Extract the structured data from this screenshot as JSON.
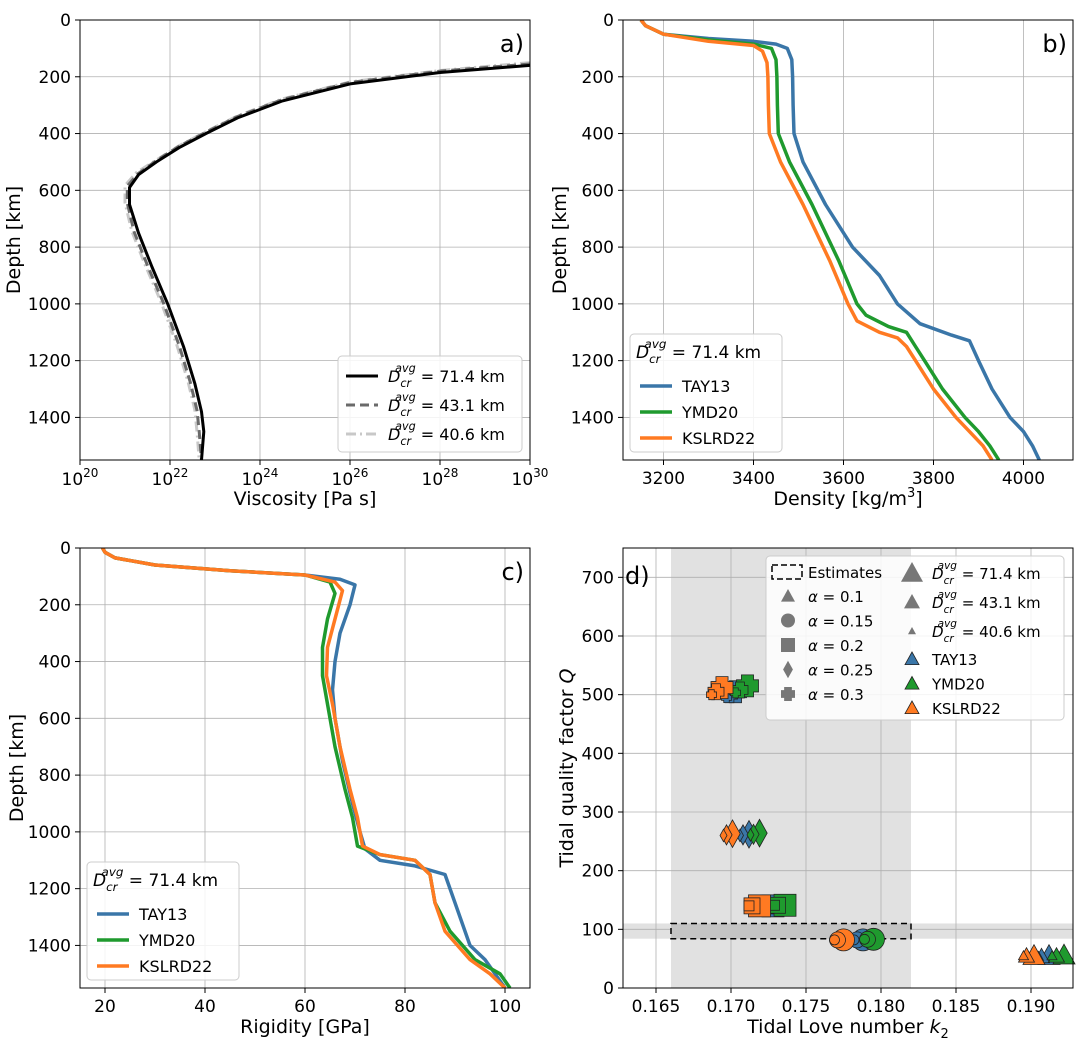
{
  "colors": {
    "tay13": "#3a76a8",
    "ymd20": "#1f9a2e",
    "kslrd22": "#ff7a22",
    "grid": "#b0b0b0",
    "shade": "#d4d4d4"
  },
  "chart_data": [
    {
      "id": "a",
      "type": "line",
      "panel_label": "a)",
      "xlabel": "Viscosity [Pa s]",
      "ylabel": "Depth [km]",
      "xscale": "log",
      "xlim_exp": [
        20,
        30
      ],
      "ylim": [
        1550,
        0
      ],
      "xticks": [
        {
          "base": "10",
          "exp": "20"
        },
        {
          "base": "10",
          "exp": "22"
        },
        {
          "base": "10",
          "exp": "24"
        },
        {
          "base": "10",
          "exp": "26"
        },
        {
          "base": "10",
          "exp": "28"
        },
        {
          "base": "10",
          "exp": "30"
        }
      ],
      "yticks": [
        "0",
        "200",
        "400",
        "600",
        "800",
        "1000",
        "1200",
        "1400"
      ],
      "legend": {
        "position": "lower-right",
        "entries": [
          {
            "sym": "D",
            "sub": "cr",
            "sup": "avg",
            "value": " = 71.4 km",
            "color": "#000000",
            "dash": "solid"
          },
          {
            "sym": "D",
            "sub": "cr",
            "sup": "avg",
            "value": " = 43.1 km",
            "color": "#6a6a6a",
            "dash": "dashed"
          },
          {
            "sym": "D",
            "sub": "cr",
            "sup": "avg",
            "value": " = 40.6 km",
            "color": "#c8c8c8",
            "dash": "dashdot"
          }
        ]
      },
      "series": [
        {
          "name": "71.4 km",
          "log10_viscosity": [
            30,
            28,
            26,
            24.5,
            23.5,
            22.8,
            22.2,
            21.7,
            21.3,
            21.1,
            21.1,
            21.3,
            21.6,
            21.95,
            22.3,
            22.55,
            22.7,
            22.75,
            22.7
          ],
          "depth": [
            160,
            185,
            225,
            285,
            345,
            400,
            450,
            500,
            545,
            590,
            650,
            750,
            870,
            1000,
            1150,
            1280,
            1380,
            1450,
            1550
          ]
        },
        {
          "name": "43.1 km",
          "log10_viscosity": [
            30,
            28,
            26,
            24.5,
            23.5,
            22.8,
            22.2,
            21.7,
            21.3,
            21.05,
            21.05,
            21.2,
            21.5,
            21.85,
            22.2,
            22.45,
            22.6,
            22.65,
            22.7
          ],
          "depth": [
            155,
            180,
            220,
            280,
            340,
            395,
            445,
            495,
            540,
            585,
            645,
            745,
            865,
            995,
            1145,
            1275,
            1375,
            1450,
            1550
          ]
        },
        {
          "name": "40.6 km",
          "log10_viscosity": [
            30,
            28,
            26,
            24.5,
            23.5,
            22.8,
            22.2,
            21.7,
            21.25,
            21.0,
            21.0,
            21.15,
            21.45,
            21.8,
            22.15,
            22.4,
            22.55,
            22.6,
            22.65
          ],
          "depth": [
            150,
            178,
            218,
            278,
            338,
            393,
            443,
            493,
            538,
            583,
            643,
            743,
            863,
            993,
            1143,
            1273,
            1373,
            1450,
            1550
          ]
        }
      ]
    },
    {
      "id": "b",
      "type": "line",
      "panel_label": "b)",
      "xlabel": "Density [kg/m",
      "xlabel_sup": "3",
      "xlabel_end": "]",
      "ylabel": "Depth [km]",
      "xlim": [
        3110,
        4110
      ],
      "ylim": [
        1550,
        0
      ],
      "xticks": [
        "3200",
        "3400",
        "3600",
        "3800",
        "4000"
      ],
      "yticks": [
        "0",
        "200",
        "400",
        "600",
        "800",
        "1000",
        "1200",
        "1400"
      ],
      "legend": {
        "position": "lower-left",
        "title_sym": "D",
        "title_sub": "cr",
        "title_sup": "avg",
        "title_value": " = 71.4 km",
        "entries": [
          "TAY13",
          "YMD20",
          "KSLRD22"
        ]
      },
      "series": [
        {
          "name": "TAY13",
          "density": [
            3150,
            3160,
            3200,
            3300,
            3400,
            3450,
            3475,
            3485,
            3487,
            3488,
            3490,
            3510,
            3560,
            3620,
            3680,
            3720,
            3770,
            3840,
            3880,
            3900,
            3930,
            3970,
            4000,
            4020,
            4035
          ],
          "depth": [
            0,
            20,
            50,
            65,
            75,
            85,
            100,
            140,
            200,
            300,
            400,
            500,
            650,
            800,
            900,
            1000,
            1070,
            1110,
            1130,
            1200,
            1300,
            1400,
            1450,
            1500,
            1550
          ]
        },
        {
          "name": "YMD20",
          "density": [
            3150,
            3160,
            3200,
            3300,
            3400,
            3440,
            3450,
            3452,
            3453,
            3455,
            3480,
            3530,
            3590,
            3630,
            3650,
            3700,
            3740,
            3760,
            3780,
            3820,
            3870,
            3900,
            3925,
            3945
          ],
          "depth": [
            0,
            20,
            50,
            70,
            85,
            100,
            140,
            200,
            300,
            400,
            500,
            650,
            850,
            1000,
            1040,
            1080,
            1100,
            1150,
            1200,
            1300,
            1400,
            1450,
            1500,
            1550
          ]
        },
        {
          "name": "KSLRD22",
          "density": [
            3150,
            3160,
            3200,
            3300,
            3400,
            3420,
            3430,
            3432,
            3433,
            3435,
            3460,
            3510,
            3570,
            3610,
            3630,
            3680,
            3720,
            3740,
            3760,
            3800,
            3850,
            3880,
            3910,
            3930
          ],
          "depth": [
            0,
            20,
            50,
            75,
            90,
            110,
            150,
            200,
            300,
            400,
            500,
            650,
            850,
            1000,
            1060,
            1100,
            1120,
            1150,
            1200,
            1300,
            1400,
            1450,
            1500,
            1550
          ]
        }
      ]
    },
    {
      "id": "c",
      "type": "line",
      "panel_label": "c)",
      "xlabel": "Rigidity [GPa]",
      "ylabel": "Depth [km]",
      "xlim": [
        15,
        105
      ],
      "ylim": [
        1550,
        0
      ],
      "xticks": [
        "20",
        "40",
        "60",
        "80",
        "100"
      ],
      "yticks": [
        "0",
        "200",
        "400",
        "600",
        "800",
        "1000",
        "1200",
        "1400"
      ],
      "legend": {
        "position": "lower-left",
        "title_sym": "D",
        "title_sub": "cr",
        "title_sup": "avg",
        "title_value": " = 71.4 km",
        "entries": [
          "TAY13",
          "YMD20",
          "KSLRD22"
        ]
      },
      "series": [
        {
          "name": "TAY13",
          "rigidity": [
            19.5,
            20,
            22,
            30,
            45,
            60,
            67,
            70,
            69,
            67,
            66,
            65.5,
            66,
            67.5,
            69.5,
            71,
            72,
            75,
            82,
            88,
            90,
            93,
            96,
            98,
            100
          ],
          "depth": [
            0,
            15,
            35,
            60,
            80,
            95,
            110,
            130,
            200,
            300,
            400,
            500,
            600,
            750,
            900,
            1000,
            1060,
            1100,
            1120,
            1150,
            1250,
            1400,
            1450,
            1500,
            1550
          ]
        },
        {
          "name": "YMD20",
          "rigidity": [
            19.5,
            20,
            22,
            30,
            45,
            60,
            65,
            66,
            64.5,
            63.5,
            63.5,
            64.5,
            66,
            68,
            69.5,
            70.5,
            75,
            82,
            85,
            86,
            89,
            94,
            99,
            101
          ],
          "depth": [
            0,
            15,
            35,
            60,
            80,
            95,
            120,
            160,
            250,
            350,
            450,
            550,
            700,
            850,
            950,
            1050,
            1080,
            1100,
            1150,
            1250,
            1350,
            1450,
            1500,
            1550
          ]
        },
        {
          "name": "KSLRD22",
          "rigidity": [
            19.5,
            20,
            22,
            30,
            45,
            60,
            66,
            67.5,
            66,
            64.5,
            64.3,
            65.5,
            67,
            69,
            70.5,
            71.5,
            75,
            82,
            85,
            86,
            88,
            93,
            97,
            100
          ],
          "depth": [
            0,
            15,
            35,
            60,
            80,
            95,
            120,
            150,
            250,
            350,
            450,
            550,
            700,
            850,
            950,
            1050,
            1080,
            1100,
            1150,
            1250,
            1350,
            1450,
            1500,
            1550
          ]
        }
      ]
    },
    {
      "id": "d",
      "type": "scatter",
      "panel_label": "d)",
      "xlabel": "Tidal Love number ",
      "xlabel_sym": "k",
      "xlabel_sub": "2",
      "ylabel": "Tidal quality factor ",
      "ylabel_sym": "Q",
      "xlim": [
        0.1628,
        0.1928
      ],
      "ylim": [
        0,
        750
      ],
      "xticks": [
        "0.165",
        "0.170",
        "0.175",
        "0.180",
        "0.185",
        "0.190"
      ],
      "yticks": [
        "0",
        "100",
        "200",
        "300",
        "400",
        "500",
        "600",
        "700"
      ],
      "k2_estimate_band": [
        0.166,
        0.182
      ],
      "q_estimate_band": [
        84,
        110
      ],
      "legend": {
        "position": "upper-right",
        "estimates_label": "Estimates",
        "alpha_entries": [
          {
            "marker": "triangle",
            "sym": "α",
            "value": " = 0.1"
          },
          {
            "marker": "circle",
            "sym": "α",
            "value": " = 0.15"
          },
          {
            "marker": "square",
            "sym": "α",
            "value": " = 0.2"
          },
          {
            "marker": "diamond",
            "sym": "α",
            "value": " = 0.25"
          },
          {
            "marker": "plus",
            "sym": "α",
            "value": " = 0.3"
          }
        ],
        "size_entries": [
          {
            "sym": "D",
            "sub": "cr",
            "sup": "avg",
            "value": " = 71.4 km"
          },
          {
            "sym": "D",
            "sub": "cr",
            "sup": "avg",
            "value": " = 43.1 km"
          },
          {
            "sym": "D",
            "sub": "cr",
            "sup": "avg",
            "value": " = 40.6 km"
          }
        ],
        "model_entries": [
          "TAY13",
          "YMD20",
          "KSLRD22"
        ]
      },
      "series": [
        {
          "name": "TAY13",
          "points": [
            {
              "alpha": 0.1,
              "k2": [
                0.1912,
                0.1907,
                0.1905
              ],
              "Q": [
                55,
                54,
                54
              ]
            },
            {
              "alpha": 0.15,
              "k2": [
                0.1788,
                0.1784,
                0.1782
              ],
              "Q": [
                82,
                82,
                82
              ]
            },
            {
              "alpha": 0.2,
              "k2": [
                0.1728,
                0.1723,
                0.1721
              ],
              "Q": [
                140,
                140,
                140
              ]
            },
            {
              "alpha": 0.25,
              "k2": [
                0.1712,
                0.1708,
                0.1706
              ],
              "Q": [
                262,
                261,
                260
              ]
            },
            {
              "alpha": 0.3,
              "k2": [
                0.1703,
                0.1699,
                0.1697
              ],
              "Q": [
                505,
                500,
                495
              ]
            }
          ]
        },
        {
          "name": "YMD20",
          "points": [
            {
              "alpha": 0.1,
              "k2": [
                0.1922,
                0.1917,
                0.1914
              ],
              "Q": [
                56,
                55,
                55
              ]
            },
            {
              "alpha": 0.15,
              "k2": [
                0.1795,
                0.1791,
                0.1789
              ],
              "Q": [
                83,
                83,
                83
              ]
            },
            {
              "alpha": 0.2,
              "k2": [
                0.1736,
                0.1731,
                0.1729
              ],
              "Q": [
                141,
                141,
                141
              ]
            },
            {
              "alpha": 0.25,
              "k2": [
                0.1719,
                0.1715,
                0.1713
              ],
              "Q": [
                264,
                262,
                261
              ]
            },
            {
              "alpha": 0.3,
              "k2": [
                0.1711,
                0.1706,
                0.1703
              ],
              "Q": [
                515,
                508,
                503
              ]
            }
          ]
        },
        {
          "name": "KSLRD22",
          "points": [
            {
              "alpha": 0.1,
              "k2": [
                0.1902,
                0.1897,
                0.1895
              ],
              "Q": [
                55,
                55,
                55
              ]
            },
            {
              "alpha": 0.15,
              "k2": [
                0.1775,
                0.1771,
                0.1769
              ],
              "Q": [
                82,
                82,
                82
              ]
            },
            {
              "alpha": 0.2,
              "k2": [
                0.1719,
                0.1714,
                0.1712
              ],
              "Q": [
                140,
                140,
                140
              ]
            },
            {
              "alpha": 0.25,
              "k2": [
                0.1701,
                0.1697,
                0.1695
              ],
              "Q": [
                263,
                261,
                260
              ]
            },
            {
              "alpha": 0.3,
              "k2": [
                0.1694,
                0.169,
                0.1687
              ],
              "Q": [
                512,
                505,
                500
              ]
            }
          ]
        }
      ]
    }
  ]
}
